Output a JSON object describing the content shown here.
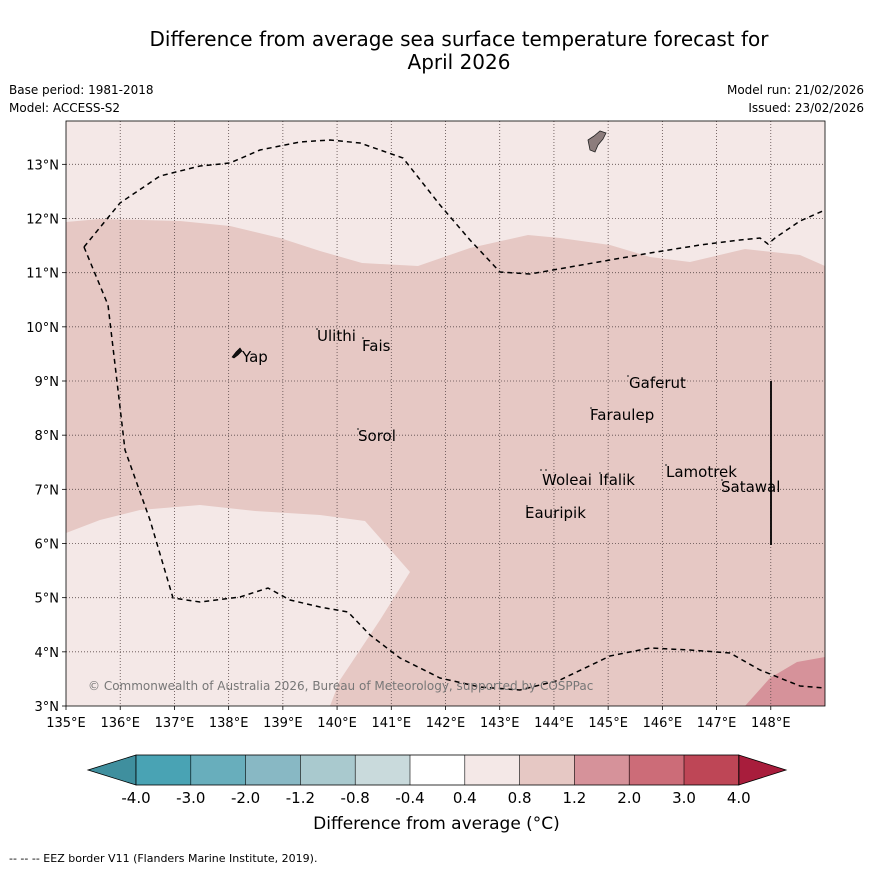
{
  "title": {
    "line1": "Difference from average sea surface temperature forecast for",
    "line2": "April 2026"
  },
  "meta": {
    "base_period": "Base period: 1981-2018",
    "model": "Model: ACCESS-S2",
    "model_run": "Model run: 21/02/2026",
    "issued": "Issued: 23/02/2026"
  },
  "map": {
    "lon_range": [
      135,
      149
    ],
    "lat_range": [
      3,
      13.8
    ],
    "lat_ticks": [
      "3°N",
      "4°N",
      "5°N",
      "6°N",
      "7°N",
      "8°N",
      "9°N",
      "10°N",
      "11°N",
      "12°N",
      "13°N"
    ],
    "lon_ticks": [
      "135°E",
      "136°E",
      "137°E",
      "138°E",
      "139°E",
      "140°E",
      "141°E",
      "142°E",
      "143°E",
      "144°E",
      "145°E",
      "146°E",
      "147°E",
      "148°E"
    ],
    "places": {
      "yap": "Yap",
      "ulithi": "Ulithi",
      "fais": "Fais",
      "gaferut": "Gaferut",
      "faraulep": "Faraulep",
      "sorol": "Sorol",
      "woleai": "Woleai",
      "ifalik": "Ifalik",
      "lamotrek": "Lamotrek",
      "satawal": "Satawal",
      "eauripik": "Eauripik"
    },
    "copyright": "© Commonwealth of Australia 2026, Bureau of Meteorology, supported by COSPPac",
    "colors": {
      "band_0_4_0_8": "#f4e8e7",
      "band_0_8_1_2": "#e6c8c4",
      "band_1_2_2_0": "#d6929a",
      "land": "#8c7c7c"
    }
  },
  "colorbar": {
    "labels": [
      "-4.0",
      "-3.0",
      "-2.0",
      "-1.2",
      "-0.8",
      "-0.4",
      "0.4",
      "0.8",
      "1.2",
      "2.0",
      "3.0",
      "4.0"
    ],
    "colors": [
      "#3f8f9e",
      "#49a3b4",
      "#68aebc",
      "#88b8c4",
      "#a9c9ce",
      "#c9dadc",
      "#ffffff",
      "#f4e8e7",
      "#e6c8c4",
      "#d6929a",
      "#cc6c78",
      "#be4656",
      "#a81d3c"
    ],
    "title": "Difference from average (°C)"
  },
  "footnote": "--  --  -- EEZ border V11 (Flanders Marine Institute, 2019)."
}
